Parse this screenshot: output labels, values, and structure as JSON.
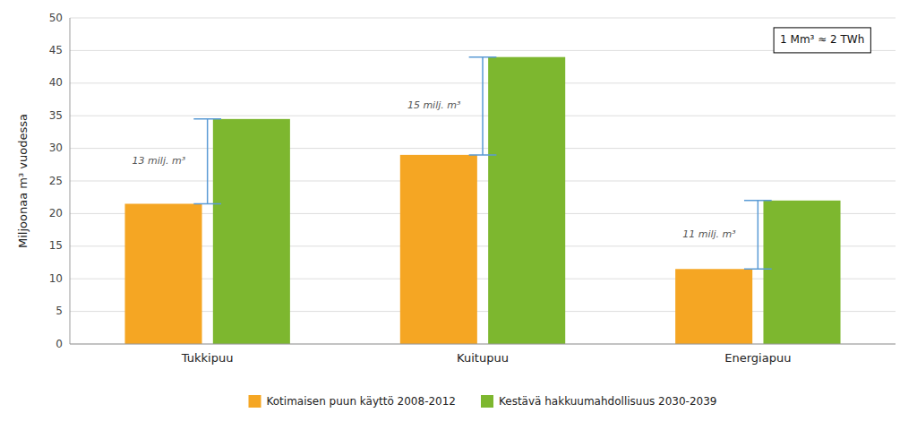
{
  "chart_data": {
    "type": "bar",
    "categories": [
      "Tukkipuu",
      "Kuitupuu",
      "Energiapuu"
    ],
    "series": [
      {
        "name": "Kotimaisen puun käyttö 2008-2012",
        "color": "#F5A623",
        "values": [
          21.5,
          29.0,
          11.5
        ]
      },
      {
        "name": "Kestävä hakkuumahdollisuus  2030-2039",
        "color": "#7DB72F",
        "values": [
          34.5,
          44.0,
          22.0
        ]
      }
    ],
    "y_label": "Miljoonaa m³ vuodessa",
    "ylim": [
      0,
      50
    ],
    "yticks": [
      0,
      5,
      10,
      15,
      20,
      25,
      30,
      35,
      40,
      45,
      50
    ],
    "grid": true,
    "legend": "bottom",
    "annotations": [
      "13 milj. m³",
      "15 milj. m³",
      "11 milj. m³"
    ],
    "note": "1 Mm³ ≈ 2 TWh"
  }
}
